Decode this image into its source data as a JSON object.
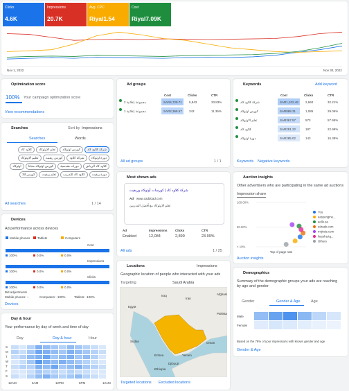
{
  "overview": {
    "metrics": [
      {
        "label": "Clicks",
        "value": "4.6K",
        "color": "#1a73e8"
      },
      {
        "label": "Impressions",
        "value": "20.7K",
        "color": "#d93025"
      },
      {
        "label": "Avg. CPC",
        "value": "Riyal1.54",
        "color": "#f9ab00"
      },
      {
        "label": "Cost",
        "value": "Riyal7.09K",
        "color": "#1e8e3e"
      }
    ],
    "chart": {
      "type": "line",
      "x": [
        "Nov 1, 2022",
        null,
        null,
        null,
        null,
        null,
        null,
        null,
        null,
        null,
        null,
        null,
        null,
        null,
        null,
        "Nov 30, 2022"
      ],
      "ylim": [
        0,
        100
      ],
      "series": [
        {
          "color": "#1a73e8",
          "values": [
            20,
            22,
            24,
            22,
            25,
            24,
            23,
            22,
            24,
            25,
            24,
            26,
            30,
            38,
            45,
            55
          ]
        },
        {
          "color": "#d93025",
          "values": [
            88,
            86,
            78,
            70,
            72,
            73,
            72,
            74,
            73,
            72,
            73,
            74,
            75,
            80,
            88,
            92
          ]
        },
        {
          "color": "#f9ab00",
          "values": [
            40,
            42,
            45,
            60,
            82,
            92,
            85,
            75,
            70,
            60,
            50,
            45,
            40,
            38,
            40,
            42
          ]
        },
        {
          "color": "#1e8e3e",
          "values": [
            25,
            27,
            28,
            27,
            30,
            29,
            28,
            27,
            29,
            30,
            31,
            32,
            35,
            40,
            50,
            62
          ]
        }
      ]
    }
  },
  "optimization": {
    "title": "Optimization score",
    "score": "100%",
    "caption": "Your campaign optimization score",
    "link": "View recommendations"
  },
  "searches": {
    "title": "Searches",
    "sort_label": "Sort by",
    "sort_value": "Impressions",
    "tabs": [
      "Searches",
      "Words"
    ],
    "chips": [
      "شركة كلاود كاد",
      "كورس اوتوكاد",
      "تعلم الاوتوكاد",
      "كلاود كاد",
      "دورة اوتوكاد",
      "شركة كلاود",
      "كورس ريفيت",
      "تعليم الاوتوكاد",
      "كلاود كاد الرياض",
      "دورات هندسية",
      "كورس اوتوكاد مجانا",
      "اوتوكاد",
      "دورة ريفيت",
      "كلاود كاد للتدريب",
      "تعلم ريفيت",
      "كورس 3d"
    ],
    "link": "All searches",
    "pager": "1 / 14"
  },
  "devices": {
    "title": "Devices",
    "subtitle": "Ad performance across devices",
    "legend": [
      {
        "name": "Mobile phones",
        "color": "#1a73e8"
      },
      {
        "name": "Tablets",
        "color": "#d93025"
      },
      {
        "name": "Computers",
        "color": "#f9ab00"
      }
    ],
    "metrics": [
      {
        "name": "Cost",
        "values": [
          100,
          0,
          0
        ],
        "value_labels": [
          "100%",
          "0.0%",
          "0.0%"
        ]
      },
      {
        "name": "Impressions",
        "values": [
          100,
          0,
          0
        ],
        "value_labels": [
          "100%",
          "0.0%",
          "0.0%"
        ]
      },
      {
        "name": "Clicks",
        "values": [
          100,
          0,
          0
        ],
        "value_labels": [
          "100%",
          "0.0%",
          "0.0%"
        ]
      }
    ],
    "bid_title": "Bid adjustments",
    "bid_adjustments": [
      "Mobile phones: --",
      "Computers: -100%",
      "Tablets: -100%"
    ],
    "link": "Devices"
  },
  "day_hour": {
    "title": "Day & hour",
    "subtitle": "Your performance by day of week and time of day",
    "tabs": [
      "Day",
      "Day & hour",
      "Hour"
    ],
    "days": [
      "S",
      "M",
      "T",
      "W",
      "T",
      "F",
      "S"
    ],
    "x_labels": [
      "12AM",
      "6AM",
      "12PM",
      "6PM",
      "12AM"
    ],
    "values": [
      [
        20,
        10,
        30,
        60,
        50,
        40,
        30,
        50,
        40,
        30,
        20,
        10
      ],
      [
        30,
        20,
        40,
        70,
        60,
        50,
        40,
        60,
        50,
        40,
        30,
        20
      ],
      [
        20,
        30,
        50,
        60,
        70,
        40,
        50,
        60,
        40,
        50,
        30,
        10
      ],
      [
        10,
        20,
        40,
        80,
        60,
        50,
        60,
        50,
        40,
        30,
        20,
        10
      ],
      [
        20,
        30,
        30,
        60,
        50,
        70,
        40,
        50,
        60,
        40,
        30,
        20
      ],
      [
        10,
        10,
        20,
        40,
        30,
        30,
        20,
        30,
        20,
        20,
        10,
        10
      ],
      [
        20,
        10,
        30,
        50,
        60,
        40,
        30,
        40,
        50,
        30,
        20,
        10
      ]
    ]
  },
  "ad_groups": {
    "title": "Ad groups",
    "columns": [
      "Cost",
      "Clicks",
      "CTR"
    ],
    "rows": [
      [
        "مجموعة إعلانية 2",
        "SAR4,728.71",
        "5,843",
        "33.83%"
      ],
      [
        "مجموعة إعلانية 1",
        "SAR2,368.57",
        "343",
        "11.36%"
      ]
    ],
    "link": "All ad groups",
    "pager": "1 / 1"
  },
  "ads": {
    "title": "Most shown ads",
    "ad": {
      "headline": "شركة كلاود كاد | كورسات أوتوكاد وريفيت",
      "label": "Ad",
      "url": "www.caddcad.com",
      "description": "تعلم الاوتوكاد مع أفضل المدربين"
    },
    "columns": [
      "Ad",
      "Impressions",
      "Clicks",
      "CTR"
    ],
    "values": [
      "Enabled",
      "12,084",
      "2,899",
      "23.99%"
    ],
    "link": "All ads",
    "pager": "1 / 25"
  },
  "locations": {
    "title": "Locations",
    "metric": "Impressions",
    "subtitle": "Geographic location of people who interacted with your ads",
    "targeting_label": "Targeting",
    "targeting_value": "Saudi Arabia",
    "map_labels": [
      "Iraq",
      "Iran",
      "Egypt",
      "Sudan",
      "Eritrea",
      "Yemen",
      "Djibouti",
      "Ethiopia",
      "Afghanistan",
      "Pakistan",
      "Oman"
    ],
    "links": [
      "Targeted locations",
      "Excluded locations"
    ]
  },
  "keywords": {
    "title": "Keywords",
    "action": "Add keyword",
    "columns": [
      "Cost",
      "Clicks",
      "CTR"
    ],
    "rows": [
      [
        "شركة كلاود كاد",
        "SAR1,102.48",
        "2,660",
        "32.21%"
      ],
      [
        "كورس اوتوكاد",
        "SAR888.31",
        "1,085",
        "29.06%"
      ],
      [
        "تعلم الاوتوكاد",
        "SAR367.57",
        "573",
        "57.95%"
      ],
      [
        "كلاود كاد",
        "SAR291.22",
        "187",
        "22.99%"
      ],
      [
        "دورة اوتوكاد",
        "SAR285.02",
        "143",
        "15.38%"
      ]
    ],
    "links": [
      "Keywords",
      "Negative keywords"
    ]
  },
  "auction": {
    "title": "Auction insights",
    "subtitle": "Other advertisers who are participating in the same ad auctions",
    "metric": "Impression share",
    "link": "Auction insights",
    "chart_data": {
      "type": "scatter",
      "x_label": "Top of page rate",
      "xlim": [
        0,
        100
      ],
      "ylim": [
        10,
        100
      ],
      "yticks": [
        {
          "value": 100,
          "label": "100.00%"
        },
        {
          "value": 50,
          "label": "50.00%"
        },
        {
          "value": 10,
          "label": "< 10%"
        }
      ],
      "series": [
        {
          "name": "You",
          "color": "#1a73e8",
          "x": [
            88
          ],
          "y": [
            30
          ]
        },
        {
          "name": "easyengine...",
          "color": "#f9ab00",
          "x": [
            78
          ],
          "y": [
            22
          ]
        },
        {
          "name": "aelle.sa",
          "color": "#1e8e3e",
          "x": [
            86
          ],
          "y": [
            52
          ]
        },
        {
          "name": "edraak.com",
          "color": "#e8710a",
          "x": [
            94
          ],
          "y": [
            38
          ]
        },
        {
          "name": "mrjiraiz.com",
          "color": "#a142f4",
          "x": [
            72
          ],
          "y": [
            55
          ]
        },
        {
          "name": "farzsha.tq...",
          "color": "#e52592",
          "x": [
            90
          ],
          "y": [
            45
          ]
        },
        {
          "name": "Others",
          "color": "#9aa0a6",
          "x": [
            60
          ],
          "y": [
            15
          ]
        }
      ]
    }
  },
  "demographics": {
    "title": "Demographics",
    "subtitle": "Summary of the demographic groups your ads are reaching by age and gender",
    "tabs": [
      "Gender",
      "Gender & Age",
      "Age"
    ],
    "rows": [
      "Male",
      "Female"
    ],
    "values": [
      [
        55,
        80,
        95,
        60,
        30,
        15
      ],
      [
        10,
        15,
        12,
        8,
        5,
        3
      ]
    ],
    "note": "Based on the 78% of your impressions with known gender and age",
    "link": "Gender & Age"
  }
}
